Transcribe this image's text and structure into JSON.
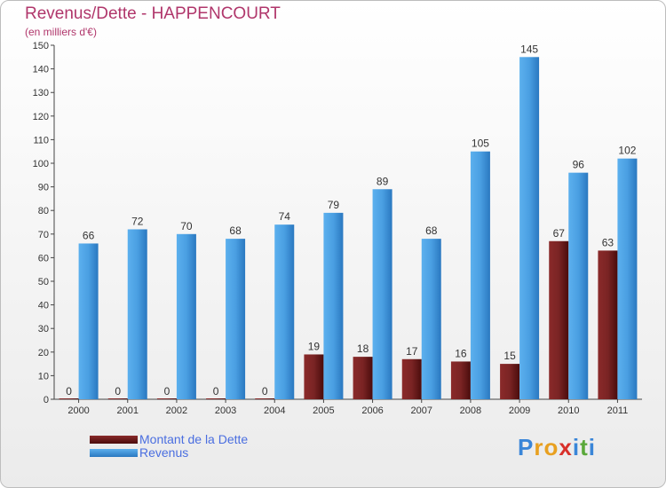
{
  "title": "Revenus/Dette - HAPPENCOURT",
  "subtitle": "(en milliers d'€)",
  "logo": {
    "text": "Proxiti",
    "letters": [
      "P",
      "r",
      "o",
      "x",
      "i",
      "t",
      "i"
    ],
    "colors": [
      "#3a86d8",
      "#e8a020",
      "#e8a020",
      "#d8302a",
      "#3a86d8",
      "#5aa83a",
      "#3a86d8"
    ]
  },
  "chart_data": {
    "type": "bar",
    "title": "Revenus/Dette - HAPPENCOURT",
    "subtitle": "(en milliers d'€)",
    "categories": [
      "2000",
      "2001",
      "2002",
      "2003",
      "2004",
      "2005",
      "2006",
      "2007",
      "2008",
      "2009",
      "2010",
      "2011"
    ],
    "series": [
      {
        "name": "Montant de la Dette",
        "color": "#6b1a1a",
        "values": [
          0,
          0,
          0,
          0,
          0,
          19,
          18,
          17,
          16,
          15,
          67,
          63
        ]
      },
      {
        "name": "Revenus",
        "color": "#4a9fe0",
        "values": [
          66,
          72,
          70,
          68,
          74,
          79,
          89,
          68,
          105,
          145,
          96,
          102
        ]
      }
    ],
    "ylim": [
      0,
      150
    ],
    "yticks": [
      0,
      10,
      20,
      30,
      40,
      50,
      60,
      70,
      80,
      90,
      100,
      110,
      120,
      130,
      140,
      150
    ],
    "grid": false,
    "legend": "bottom-left"
  }
}
